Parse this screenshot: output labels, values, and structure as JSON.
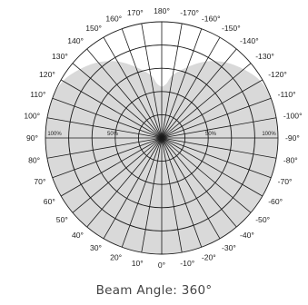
{
  "chart_data": {
    "type": "polar",
    "ring_labels": [
      "50%",
      "100%"
    ],
    "angle_labels": {
      "right": [
        "180°",
        "-170°",
        "-160°",
        "-150°",
        "-140°",
        "-130°",
        "-120°",
        "-110°",
        "-100°",
        "-90°",
        "-80°",
        "-70°",
        "-60°",
        "-50°",
        "-40°",
        "-30°",
        "-20°",
        "-10°"
      ],
      "left": [
        "170°",
        "160°",
        "150°",
        "140°",
        "130°",
        "120°",
        "110°",
        "100°",
        "90°",
        "80°",
        "70°",
        "60°",
        "50°",
        "40°",
        "30°",
        "20°",
        "10°",
        "0°"
      ]
    },
    "series": [
      {
        "angles_deg": [
          0,
          10,
          20,
          30,
          40,
          50,
          60,
          70,
          80,
          90,
          100,
          110,
          120,
          130,
          140,
          150,
          160,
          170,
          175,
          180
        ],
        "values_pct": [
          100,
          100,
          100,
          100,
          100,
          100,
          100,
          100,
          100,
          100,
          100,
          100,
          98,
          92,
          85,
          76,
          65,
          55,
          47,
          44
        ]
      }
    ],
    "rlim": [
      0,
      100
    ],
    "grid": true,
    "colors": {
      "fill": "#d9d9d9",
      "grid": "#1a1a1a"
    }
  },
  "caption": "Beam Angle: 360°"
}
